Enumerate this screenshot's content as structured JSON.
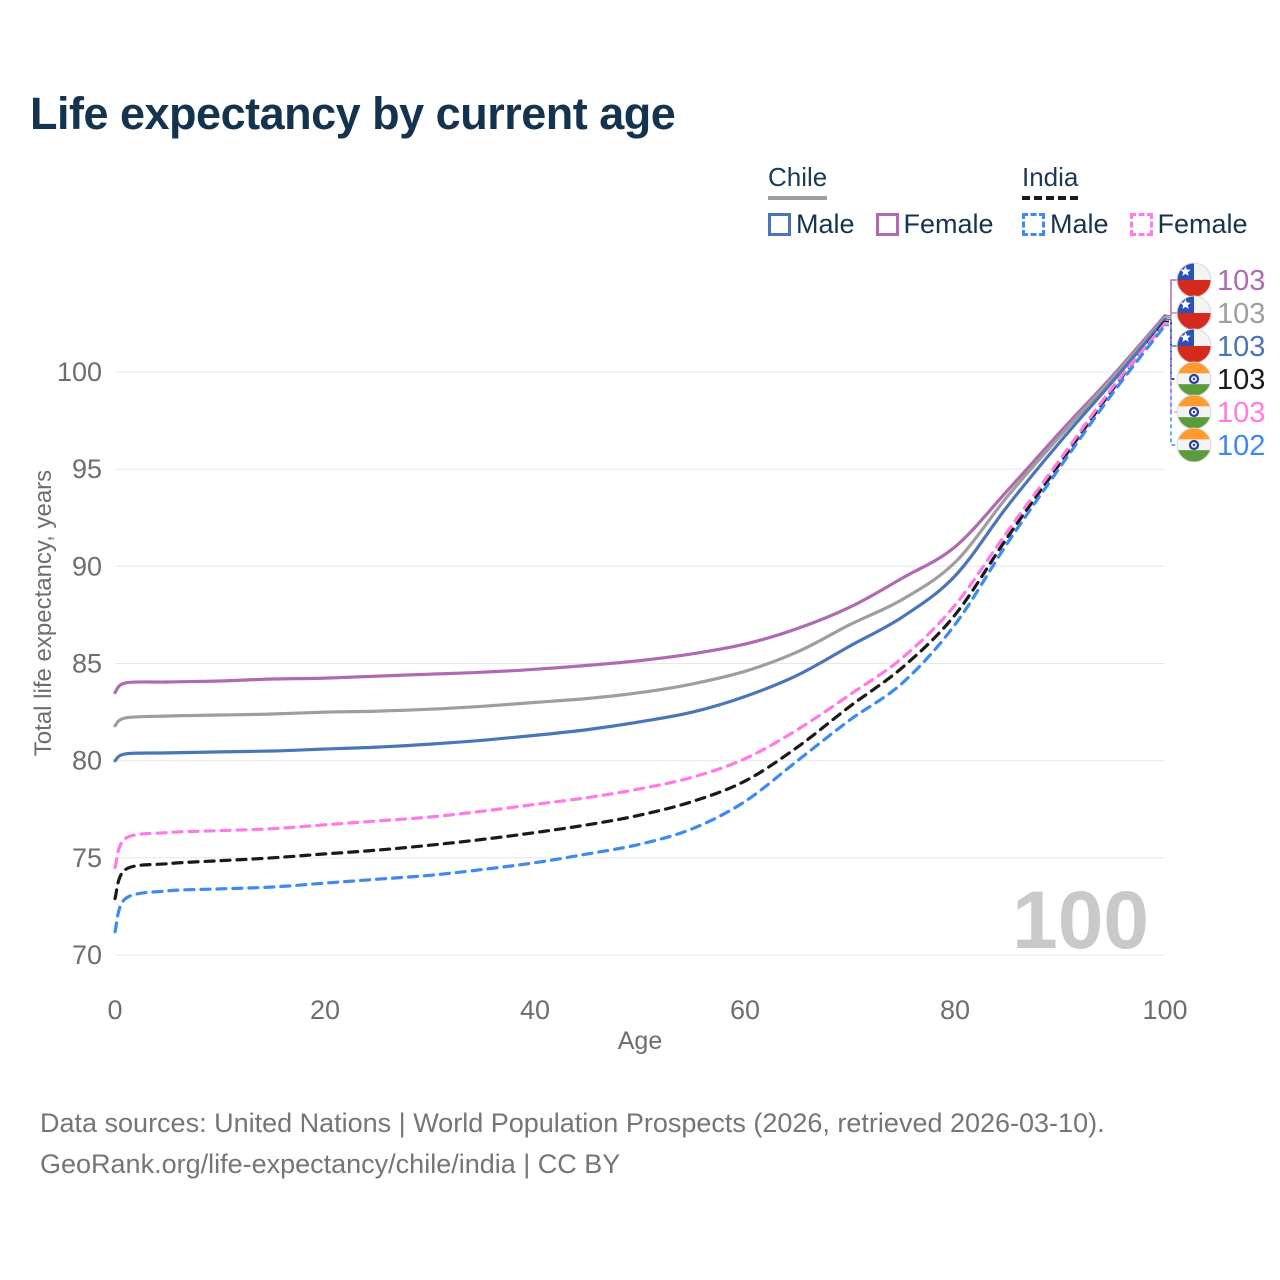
{
  "page": {
    "title": "Life expectancy by current age",
    "footer_line1": "Data sources: United Nations | World Population Prospects (2026, retrieved 2026-03-10).",
    "footer_line2": "GeoRank.org/life-expectancy/chile/india | CC BY"
  },
  "watermark_age": "100",
  "legend": {
    "groups": [
      {
        "country": "Chile",
        "line_color": "#9e9e9e",
        "line_style": "solid",
        "items": [
          {
            "label": "Male",
            "series": "chile-male"
          },
          {
            "label": "Female",
            "series": "chile-female"
          }
        ]
      },
      {
        "country": "India",
        "line_color": "#1a1a1a",
        "line_style": "dashed",
        "items": [
          {
            "label": "Male",
            "series": "india-male"
          },
          {
            "label": "Female",
            "series": "india-female"
          }
        ]
      }
    ]
  },
  "chart_data": {
    "type": "line",
    "title": "Life expectancy by current age",
    "xlabel": "Age",
    "ylabel": "Total life expectancy, years",
    "x_ticks": [
      0,
      20,
      40,
      60,
      80,
      100
    ],
    "y_ticks": [
      70,
      75,
      80,
      85,
      90,
      95,
      100
    ],
    "xlim": [
      0,
      100
    ],
    "ylim": [
      70,
      103
    ],
    "grid": "horizontal-only",
    "legend_position": "top-right",
    "ages": [
      0,
      1,
      5,
      10,
      15,
      20,
      25,
      30,
      35,
      40,
      45,
      50,
      55,
      60,
      65,
      70,
      75,
      80,
      85,
      90,
      95,
      100
    ],
    "series": [
      {
        "id": "chile-female",
        "country": "Chile",
        "sex": "Female",
        "style": "solid",
        "color": "#b06ab2",
        "flag": "chile",
        "end_label": "103",
        "values": [
          83.5,
          84.0,
          84.05,
          84.1,
          84.2,
          84.25,
          84.35,
          84.45,
          84.55,
          84.7,
          84.9,
          85.15,
          85.5,
          86.0,
          86.8,
          87.9,
          89.4,
          91.0,
          93.9,
          96.9,
          99.8,
          102.9
        ]
      },
      {
        "id": "chile-both",
        "country": "Chile",
        "sex": "Both sexes",
        "style": "solid",
        "color": "#9e9e9e",
        "flag": "chile",
        "end_label": "103",
        "values": [
          81.8,
          82.2,
          82.3,
          82.35,
          82.4,
          82.5,
          82.55,
          82.65,
          82.8,
          83.0,
          83.2,
          83.5,
          83.95,
          84.6,
          85.6,
          87.0,
          88.3,
          90.2,
          93.6,
          96.7,
          99.7,
          102.8
        ]
      },
      {
        "id": "chile-male",
        "country": "Chile",
        "sex": "Male",
        "style": "solid",
        "color": "#4a76b8",
        "flag": "chile",
        "end_label": "103",
        "values": [
          80.0,
          80.35,
          80.4,
          80.45,
          80.5,
          80.6,
          80.7,
          80.85,
          81.05,
          81.3,
          81.6,
          82.0,
          82.5,
          83.3,
          84.4,
          85.9,
          87.4,
          89.5,
          93.1,
          96.4,
          99.5,
          102.7
        ]
      },
      {
        "id": "india-both",
        "country": "India",
        "sex": "Both sexes",
        "style": "dashed",
        "color": "#1a1a1a",
        "flag": "india",
        "end_label": "103",
        "values": [
          72.9,
          74.4,
          74.7,
          74.85,
          75.0,
          75.2,
          75.4,
          75.65,
          75.95,
          76.3,
          76.7,
          77.2,
          77.9,
          78.95,
          80.7,
          82.8,
          84.8,
          87.5,
          91.5,
          95.3,
          99.1,
          102.6
        ]
      },
      {
        "id": "india-female",
        "country": "India",
        "sex": "Female",
        "style": "dashed",
        "color": "#ff7ae5",
        "flag": "india",
        "end_label": "103",
        "values": [
          74.5,
          76.0,
          76.3,
          76.4,
          76.5,
          76.7,
          76.9,
          77.1,
          77.4,
          77.75,
          78.1,
          78.55,
          79.15,
          80.1,
          81.6,
          83.4,
          85.3,
          88.0,
          91.8,
          95.5,
          99.2,
          102.5
        ]
      },
      {
        "id": "india-male",
        "country": "India",
        "sex": "Male",
        "style": "dashed",
        "color": "#3f8af0",
        "flag": "india",
        "end_label": "102",
        "values": [
          71.2,
          72.9,
          73.3,
          73.4,
          73.5,
          73.7,
          73.9,
          74.1,
          74.4,
          74.75,
          75.2,
          75.7,
          76.5,
          77.9,
          80.0,
          82.1,
          84.0,
          87.0,
          91.2,
          95.1,
          98.9,
          102.4
        ]
      }
    ]
  }
}
